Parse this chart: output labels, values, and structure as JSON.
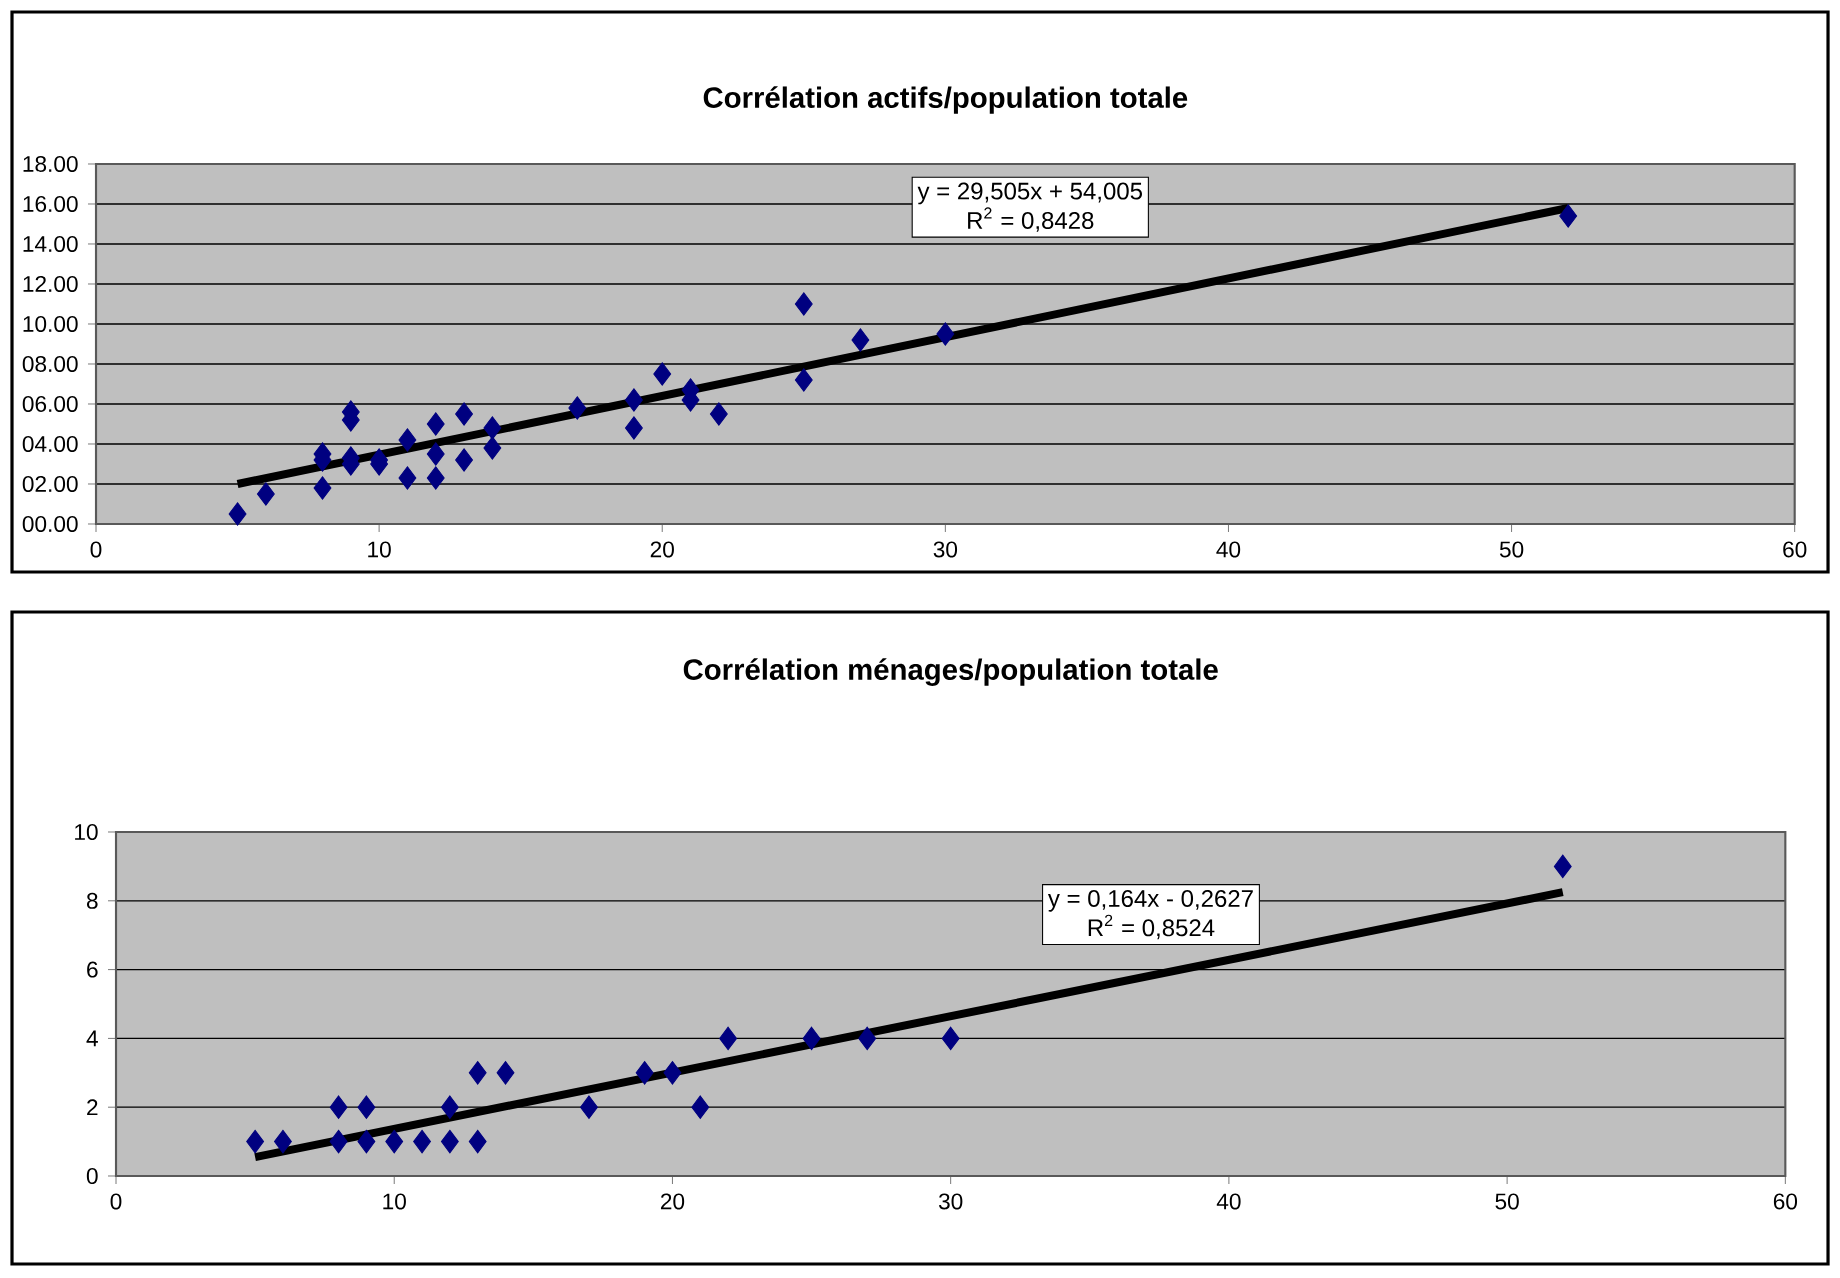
{
  "chart_data": [
    {
      "type": "scatter",
      "title": "Corrélation actifs/population totale",
      "marker": "diamond",
      "grid": "y",
      "xlim": [
        0,
        60
      ],
      "xticks": [
        0,
        10,
        20,
        30,
        40,
        50,
        60
      ],
      "ylim": [
        0,
        18
      ],
      "yticks": [
        {
          "value": 0,
          "label": "00.00"
        },
        {
          "value": 2,
          "label": "02.00"
        },
        {
          "value": 4,
          "label": "04.00"
        },
        {
          "value": 6,
          "label": "06.00"
        },
        {
          "value": 8,
          "label": "08.00"
        },
        {
          "value": 10,
          "label": "10.00"
        },
        {
          "value": 12,
          "label": "12.00"
        },
        {
          "value": 14,
          "label": "14.00"
        },
        {
          "value": 16,
          "label": "16.00"
        },
        {
          "value": 18,
          "label": "18.00"
        }
      ],
      "annotations": [
        "y = 29,505x + 54,005",
        "R$^{2}$ = 0,8428"
      ],
      "series": [
        {
          "type": "scatter",
          "color": "#000080",
          "x": [
            5,
            6,
            8,
            8,
            8,
            9,
            9,
            9,
            9,
            10,
            10,
            11,
            11,
            12,
            12,
            12,
            13,
            13,
            14,
            14,
            17,
            19,
            19,
            20,
            21,
            21,
            22,
            25,
            25,
            27,
            30,
            52
          ],
          "values": [
            0.5,
            1.5,
            1.8,
            3.2,
            3.5,
            3.0,
            3.3,
            5.2,
            5.6,
            3.0,
            3.2,
            2.3,
            4.2,
            2.3,
            3.5,
            5.0,
            3.2,
            5.5,
            3.8,
            4.8,
            5.8,
            4.8,
            6.2,
            7.5,
            6.2,
            6.7,
            5.5,
            11.0,
            7.2,
            9.2,
            9.5,
            15.4
          ]
        },
        {
          "type": "line",
          "color": "#000000",
          "marker": "none",
          "x": [
            5,
            52
          ],
          "values": [
            2.0,
            15.8
          ]
        }
      ]
    },
    {
      "type": "scatter",
      "title": "Corrélation ménages/population totale",
      "marker": "diamond",
      "grid": "y",
      "xlim": [
        0,
        60
      ],
      "xticks": [
        0,
        10,
        20,
        30,
        40,
        50,
        60
      ],
      "ylim": [
        0,
        10
      ],
      "yticks": [
        0,
        2,
        4,
        6,
        8,
        10
      ],
      "annotations": [
        "y = 0,164x - 0,2627",
        "R$^{2}$ = 0,8524"
      ],
      "series": [
        {
          "type": "scatter",
          "color": "#000080",
          "x": [
            5,
            6,
            8,
            8,
            9,
            9,
            10,
            11,
            12,
            12,
            13,
            13,
            14,
            17,
            19,
            20,
            21,
            22,
            25,
            27,
            30,
            52
          ],
          "values": [
            1,
            1,
            1,
            2,
            1,
            2,
            1,
            1,
            1,
            2,
            1,
            3,
            3,
            2,
            3,
            3,
            2,
            4,
            4,
            4,
            4,
            9
          ]
        },
        {
          "type": "line",
          "color": "#000000",
          "marker": "none",
          "x": [
            5,
            52
          ],
          "values": [
            0.55,
            8.25
          ]
        }
      ]
    }
  ]
}
